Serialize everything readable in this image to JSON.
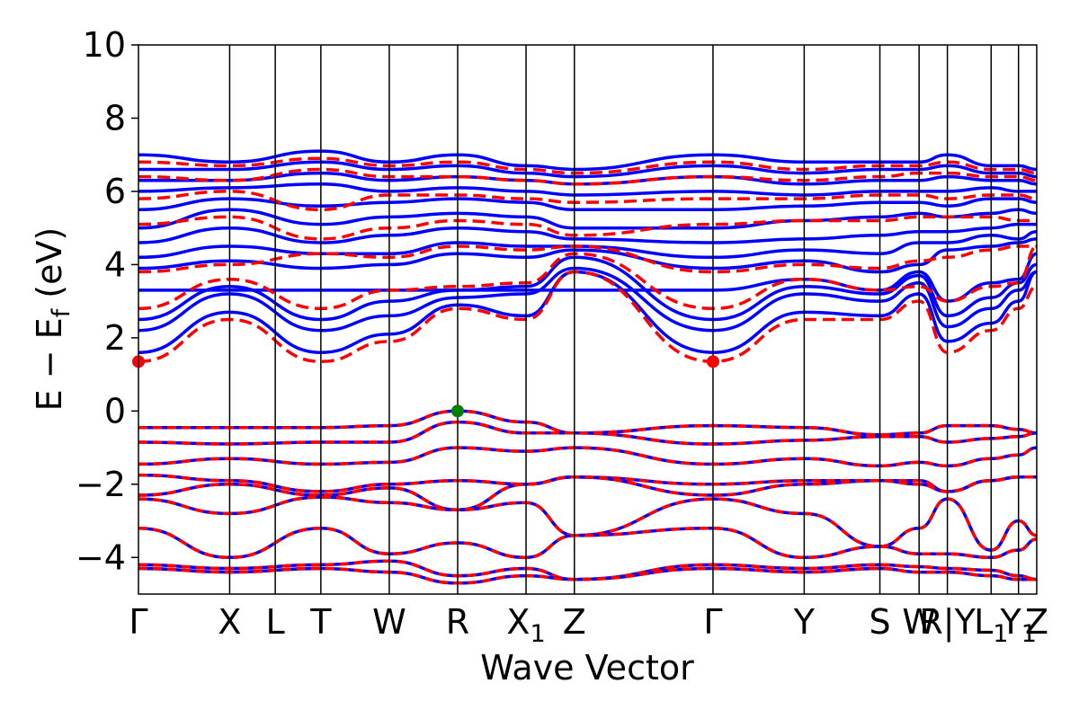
{
  "chart_data": {
    "type": "line",
    "title": "",
    "xlabel": "Wave Vector",
    "ylabel_main": "E − E",
    "ylabel_sub": "f",
    "ylabel_unit": " (eV)",
    "ylim": [
      -5,
      10
    ],
    "yticks": [
      -4,
      -2,
      0,
      2,
      4,
      6,
      8,
      10
    ],
    "ytick_labels": [
      "−4",
      "−2",
      "0",
      "2",
      "4",
      "6",
      "8",
      "10"
    ],
    "xlim": [
      0,
      9.85
    ],
    "kpoints": [
      {
        "label": "Γ",
        "x": 0.0
      },
      {
        "label": "X",
        "x": 1.0
      },
      {
        "label": "L",
        "x": 1.5
      },
      {
        "label": "T",
        "x": 2.0
      },
      {
        "label": "W",
        "x": 2.75
      },
      {
        "label": "R",
        "x": 3.5
      },
      {
        "label": "X",
        "sub": "1",
        "x": 4.25
      },
      {
        "label": "Z",
        "x": 4.78
      },
      {
        "label": "Γ",
        "x": 6.3
      },
      {
        "label": "Y",
        "x": 7.3
      },
      {
        "label": "S",
        "x": 8.13
      },
      {
        "label": "W",
        "x": 8.56
      },
      {
        "label": "R|Y",
        "x": 8.87
      },
      {
        "label": "L",
        "sub": "1",
        "x": 9.35
      },
      {
        "label": "Y",
        "sub": "1",
        "x": 9.65
      },
      {
        "label": "Z",
        "x": 9.85
      }
    ],
    "legend": "none",
    "grid": false,
    "colors": {
      "blue_bands": "#0000ff",
      "red_bands": "#ff0000",
      "vbm_marker": "#008000",
      "cbm_marker": "#ff0000"
    },
    "markers": [
      {
        "name": "cbm",
        "x": 0.0,
        "y": 1.35,
        "color": "#ff0000"
      },
      {
        "name": "cbm",
        "x": 6.3,
        "y": 1.35,
        "color": "#ff0000"
      },
      {
        "name": "vbm",
        "x": 3.5,
        "y": 0.0,
        "color": "#008000"
      }
    ],
    "series": [
      {
        "style": "blue_solid",
        "x": [
          0,
          1,
          2,
          2.75,
          3.5,
          4.25,
          4.78,
          6.3,
          7.3,
          8.13,
          8.56,
          8.87,
          9.35,
          9.65,
          9.85
        ],
        "y": [
          1.6,
          2.7,
          1.6,
          2.1,
          2.9,
          2.6,
          3.8,
          1.6,
          2.7,
          2.6,
          3.2,
          1.9,
          2.4,
          3.0,
          3.8
        ]
      },
      {
        "style": "blue_solid",
        "x": [
          0,
          1,
          2,
          2.75,
          3.5,
          4.25,
          4.78,
          6.3,
          7.3,
          8.13,
          8.56,
          8.87,
          9.35,
          9.65,
          9.85
        ],
        "y": [
          2.2,
          3.2,
          2.2,
          2.6,
          3.1,
          3.2,
          3.9,
          2.2,
          3.2,
          3.0,
          3.5,
          2.3,
          2.8,
          3.3,
          3.8
        ]
      },
      {
        "style": "blue_solid",
        "x": [
          0,
          1,
          2,
          2.75,
          3.5,
          4.25,
          4.78,
          6.3,
          7.3,
          8.13,
          8.56,
          8.87,
          9.35,
          9.65,
          9.85
        ],
        "y": [
          2.5,
          3.4,
          2.5,
          3.0,
          3.3,
          3.4,
          4.2,
          2.5,
          3.4,
          3.2,
          3.7,
          2.6,
          3.1,
          3.5,
          4.0
        ]
      },
      {
        "style": "blue_solid",
        "x": [
          0,
          1,
          2,
          2.75,
          3.5,
          4.25,
          4.78,
          6.3,
          7.3,
          8.13,
          8.56,
          8.87,
          9.35,
          9.65,
          9.85
        ],
        "y": [
          3.3,
          3.3,
          3.3,
          3.3,
          3.3,
          3.3,
          3.3,
          3.3,
          3.6,
          3.3,
          3.8,
          3.0,
          3.5,
          3.6,
          4.3
        ]
      },
      {
        "style": "blue_solid",
        "x": [
          0,
          1,
          2,
          2.75,
          3.5,
          4.25,
          4.78,
          6.3,
          7.3,
          8.13,
          8.56,
          8.87,
          9.35,
          9.65,
          9.85
        ],
        "y": [
          3.9,
          4.1,
          3.9,
          4.0,
          4.3,
          4.2,
          4.4,
          3.9,
          4.1,
          3.8,
          4.0,
          4.4,
          4.5,
          4.6,
          4.7
        ]
      },
      {
        "style": "blue_solid",
        "x": [
          0,
          1,
          2,
          2.75,
          3.5,
          4.25,
          4.78,
          6.3,
          7.3,
          8.13,
          8.56,
          8.87,
          9.35,
          9.65,
          9.85
        ],
        "y": [
          4.2,
          4.5,
          4.3,
          4.3,
          4.6,
          4.5,
          4.5,
          4.2,
          4.4,
          4.3,
          4.6,
          4.6,
          4.8,
          4.7,
          4.9
        ]
      },
      {
        "style": "blue_solid",
        "x": [
          0,
          1,
          2,
          2.75,
          3.5,
          4.25,
          4.78,
          6.3,
          7.3,
          8.13,
          8.56,
          8.87,
          9.35,
          9.65,
          9.85
        ],
        "y": [
          4.6,
          5.0,
          4.6,
          4.8,
          5.0,
          4.9,
          4.7,
          4.6,
          4.7,
          4.8,
          4.9,
          4.9,
          5.0,
          5.1,
          5.1
        ]
      },
      {
        "style": "blue_solid",
        "x": [
          0,
          1,
          2,
          2.75,
          3.5,
          4.25,
          4.78,
          6.3,
          7.3,
          8.13,
          8.56,
          8.87,
          9.35,
          9.65,
          9.85
        ],
        "y": [
          5.0,
          5.5,
          5.1,
          5.3,
          5.4,
          5.3,
          5.0,
          5.0,
          5.2,
          5.3,
          5.4,
          5.3,
          5.4,
          5.5,
          5.4
        ]
      },
      {
        "style": "blue_solid",
        "x": [
          0,
          1,
          2,
          2.75,
          3.5,
          4.25,
          4.78,
          6.3,
          7.3,
          8.13,
          8.56,
          8.87,
          9.35,
          9.65,
          9.85
        ],
        "y": [
          5.5,
          5.8,
          5.6,
          5.7,
          5.8,
          5.7,
          5.5,
          5.5,
          5.6,
          5.7,
          5.7,
          5.6,
          5.8,
          5.8,
          5.7
        ]
      },
      {
        "style": "blue_solid",
        "x": [
          0,
          1,
          2,
          2.75,
          3.5,
          4.25,
          4.78,
          6.3,
          7.3,
          8.13,
          8.56,
          8.87,
          9.35,
          9.65,
          9.85
        ],
        "y": [
          6.0,
          6.1,
          6.2,
          6.0,
          6.1,
          6.0,
          5.9,
          6.0,
          5.9,
          6.0,
          6.0,
          6.0,
          6.1,
          6.0,
          6.0
        ]
      },
      {
        "style": "blue_solid",
        "x": [
          0,
          1,
          2,
          2.75,
          3.5,
          4.25,
          4.78,
          6.3,
          7.3,
          8.13,
          8.56,
          8.87,
          9.35,
          9.65,
          9.85
        ],
        "y": [
          6.3,
          6.3,
          6.5,
          6.3,
          6.4,
          6.3,
          6.2,
          6.4,
          6.2,
          6.3,
          6.3,
          6.4,
          6.3,
          6.3,
          6.2
        ]
      },
      {
        "style": "blue_solid",
        "x": [
          0,
          1,
          2,
          2.75,
          3.5,
          4.25,
          4.78,
          6.3,
          7.3,
          8.13,
          8.56,
          8.87,
          9.35,
          9.65,
          9.85
        ],
        "y": [
          6.6,
          6.6,
          6.8,
          6.6,
          6.7,
          6.5,
          6.4,
          6.7,
          6.5,
          6.6,
          6.6,
          6.7,
          6.5,
          6.5,
          6.4
        ]
      },
      {
        "style": "blue_solid",
        "x": [
          0,
          1,
          2,
          2.75,
          3.5,
          4.25,
          4.78,
          6.3,
          7.3,
          8.13,
          8.56,
          8.87,
          9.35,
          9.65,
          9.85
        ],
        "y": [
          7.0,
          6.8,
          7.1,
          6.8,
          7.0,
          6.7,
          6.6,
          7.0,
          6.8,
          6.8,
          6.8,
          7.0,
          6.7,
          6.7,
          6.6
        ]
      },
      {
        "style": "red_dashed",
        "x": [
          0,
          1,
          2,
          2.75,
          3.5,
          4.25,
          4.78,
          6.3,
          7.3,
          8.13,
          8.56,
          8.87,
          9.35,
          9.65,
          9.85
        ],
        "y": [
          1.35,
          2.5,
          1.35,
          1.9,
          2.8,
          2.5,
          3.8,
          1.35,
          2.5,
          2.5,
          3.0,
          1.6,
          2.2,
          2.8,
          3.4
        ]
      },
      {
        "style": "red_dashed",
        "x": [
          0,
          1,
          2,
          2.75,
          3.5,
          4.25,
          4.78,
          6.3,
          7.3,
          8.13,
          8.56,
          8.87,
          9.35,
          9.65,
          9.85
        ],
        "y": [
          2.8,
          3.6,
          2.8,
          3.3,
          3.4,
          3.5,
          4.3,
          2.8,
          3.6,
          3.3,
          3.4,
          3.0,
          3.4,
          3.5,
          4.5
        ]
      },
      {
        "style": "red_dashed",
        "x": [
          0,
          1,
          2,
          2.75,
          3.5,
          4.25,
          4.78,
          6.3,
          7.3,
          8.13,
          8.56,
          8.87,
          9.35,
          9.65,
          9.85
        ],
        "y": [
          3.8,
          4.0,
          4.3,
          4.2,
          4.5,
          4.4,
          4.5,
          3.8,
          4.0,
          3.9,
          4.1,
          4.2,
          4.4,
          4.5,
          4.5
        ]
      },
      {
        "style": "red_dashed",
        "x": [
          0,
          1,
          2,
          2.75,
          3.5,
          4.25,
          4.78,
          6.3,
          7.3,
          8.13,
          8.56,
          8.87,
          9.35,
          9.65,
          9.85
        ],
        "y": [
          5.1,
          5.3,
          4.7,
          5.0,
          5.2,
          5.1,
          4.8,
          5.1,
          5.2,
          5.2,
          5.3,
          5.3,
          5.3,
          5.2,
          5.2
        ]
      },
      {
        "style": "red_dashed",
        "x": [
          0,
          1,
          2,
          2.75,
          3.5,
          4.25,
          4.78,
          6.3,
          7.3,
          8.13,
          8.56,
          8.87,
          9.35,
          9.65,
          9.85
        ],
        "y": [
          5.8,
          6.0,
          5.5,
          5.9,
          5.9,
          5.8,
          5.7,
          5.8,
          5.8,
          5.9,
          5.9,
          5.8,
          5.9,
          5.9,
          5.8
        ]
      },
      {
        "style": "red_dashed",
        "x": [
          0,
          1,
          2,
          2.75,
          3.5,
          4.25,
          4.78,
          6.3,
          7.3,
          8.13,
          8.56,
          8.87,
          9.35,
          9.65,
          9.85
        ],
        "y": [
          6.4,
          6.3,
          6.6,
          6.4,
          6.4,
          6.3,
          6.2,
          6.4,
          6.3,
          6.4,
          6.5,
          6.5,
          6.4,
          6.4,
          6.3
        ]
      },
      {
        "style": "red_dashed",
        "x": [
          0,
          1,
          2,
          2.75,
          3.5,
          4.25,
          4.78,
          6.3,
          7.3,
          8.13,
          8.56,
          8.87,
          9.35,
          9.65,
          9.85
        ],
        "y": [
          6.8,
          6.7,
          6.9,
          6.7,
          6.8,
          6.6,
          6.5,
          6.8,
          6.6,
          6.7,
          6.7,
          6.8,
          6.6,
          6.6,
          6.5
        ]
      },
      {
        "style": "valence",
        "x": [
          0,
          1,
          2,
          2.75,
          3.5,
          4.25,
          4.78,
          6.3,
          7.3,
          8.13,
          8.56,
          8.87,
          9.35,
          9.65,
          9.85
        ],
        "y": [
          -0.45,
          -0.45,
          -0.45,
          -0.4,
          0.0,
          -0.3,
          -0.6,
          -0.4,
          -0.45,
          -0.65,
          -0.6,
          -0.4,
          -0.4,
          -0.5,
          -0.6
        ]
      },
      {
        "style": "valence",
        "x": [
          0,
          1,
          2,
          2.75,
          3.5,
          4.25,
          4.78,
          6.3,
          7.3,
          8.13,
          8.56,
          8.87,
          9.35,
          9.65,
          9.85
        ],
        "y": [
          -0.85,
          -0.9,
          -0.85,
          -0.85,
          -0.3,
          -0.6,
          -0.6,
          -0.9,
          -0.8,
          -0.7,
          -0.7,
          -0.85,
          -0.75,
          -0.7,
          -0.6
        ]
      },
      {
        "style": "valence",
        "x": [
          0,
          1,
          2,
          2.75,
          3.5,
          4.25,
          4.78,
          6.3,
          7.3,
          8.13,
          8.56,
          8.87,
          9.35,
          9.65,
          9.85
        ],
        "y": [
          -1.45,
          -1.3,
          -1.45,
          -1.4,
          -1.0,
          -1.1,
          -1.0,
          -1.45,
          -1.3,
          -1.5,
          -1.4,
          -1.5,
          -1.3,
          -1.2,
          -1.0
        ]
      },
      {
        "style": "valence",
        "x": [
          0,
          1,
          2,
          2.75,
          3.5,
          4.25,
          4.78,
          6.3,
          7.3,
          8.13,
          8.56,
          8.87,
          9.35,
          9.65,
          9.85
        ],
        "y": [
          -1.75,
          -1.9,
          -2.2,
          -2.0,
          -1.9,
          -2.0,
          -1.8,
          -2.0,
          -1.9,
          -1.9,
          -1.9,
          -2.2,
          -1.9,
          -1.8,
          -1.8
        ]
      },
      {
        "style": "valence",
        "x": [
          0,
          1,
          2,
          2.75,
          3.5,
          4.25,
          4.78,
          6.3,
          7.3,
          8.13,
          8.56,
          8.87,
          9.35,
          9.65,
          9.85
        ],
        "y": [
          -2.3,
          -2.0,
          -2.3,
          -2.1,
          -2.7,
          -2.0,
          -1.8,
          -2.3,
          -2.0,
          -1.9,
          -2.0,
          -2.2,
          -1.9,
          -1.8,
          -1.8
        ]
      },
      {
        "style": "valence",
        "x": [
          0,
          1,
          2,
          2.75,
          3.5,
          4.25,
          4.78,
          6.3,
          7.3,
          8.13,
          8.56,
          8.87,
          9.35,
          9.65,
          9.85
        ],
        "y": [
          -2.4,
          -2.8,
          -2.35,
          -2.5,
          -2.7,
          -2.5,
          -3.4,
          -2.4,
          -2.8,
          -3.7,
          -3.2,
          -2.4,
          -3.8,
          -3.0,
          -3.4
        ]
      },
      {
        "style": "valence",
        "x": [
          0,
          1,
          2,
          2.75,
          3.5,
          4.25,
          4.78,
          6.3,
          7.3,
          8.13,
          8.56,
          8.87,
          9.35,
          9.65,
          9.85
        ],
        "y": [
          -3.2,
          -4.0,
          -3.2,
          -3.9,
          -3.6,
          -4.0,
          -3.4,
          -3.2,
          -4.0,
          -3.7,
          -3.9,
          -3.9,
          -4.0,
          -3.8,
          -3.5
        ]
      },
      {
        "style": "valence",
        "x": [
          0,
          1,
          2,
          2.75,
          3.5,
          4.25,
          4.78,
          6.3,
          7.3,
          8.13,
          8.56,
          8.87,
          9.35,
          9.65,
          9.85
        ],
        "y": [
          -4.2,
          -4.3,
          -4.2,
          -4.1,
          -4.5,
          -4.3,
          -4.6,
          -4.2,
          -4.3,
          -4.2,
          -4.25,
          -4.3,
          -4.35,
          -4.5,
          -4.6
        ]
      },
      {
        "style": "valence",
        "x": [
          0,
          1,
          2,
          2.75,
          3.5,
          4.25,
          4.78,
          6.3,
          7.3,
          8.13,
          8.56,
          8.87,
          9.35,
          9.65,
          9.85
        ],
        "y": [
          -4.3,
          -4.4,
          -4.3,
          -4.4,
          -4.7,
          -4.5,
          -4.6,
          -4.3,
          -4.4,
          -4.3,
          -4.4,
          -4.4,
          -4.5,
          -4.6,
          -4.6
        ]
      }
    ]
  }
}
